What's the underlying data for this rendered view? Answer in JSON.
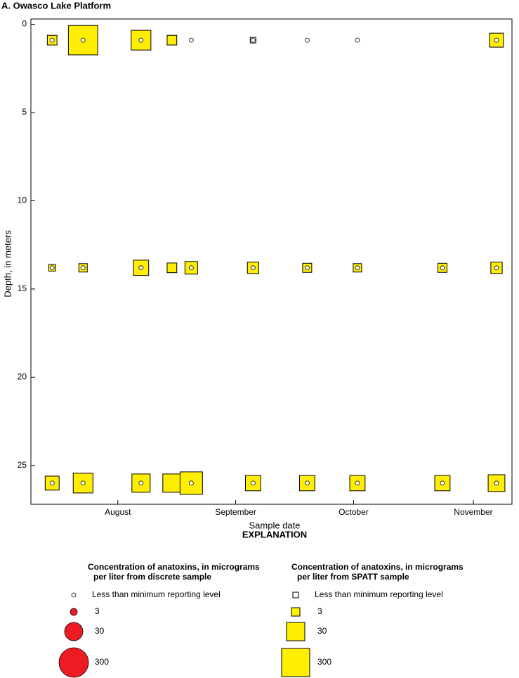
{
  "chart_data": {
    "type": "bubble",
    "title": "A. Owasco Lake Platform",
    "x_label": "Sample date",
    "y_label": "Depth, in meters",
    "xlim": [
      205.5,
      330
    ],
    "xticks": [
      {
        "value": 228,
        "label": "August"
      },
      {
        "value": 258.5,
        "label": "September"
      },
      {
        "value": 289,
        "label": "October"
      },
      {
        "value": 320,
        "label": "November"
      }
    ],
    "ylim": [
      -0.3,
      27.2
    ],
    "yticks": [
      0,
      5,
      10,
      15,
      20,
      25
    ],
    "y_inverted": true,
    "series": [
      {
        "name": "Concentration of anatoxins, in micrograms per liter from SPATT sample",
        "shape": "square",
        "color": "#ffee00",
        "x": [
          211,
          219,
          234,
          242,
          263,
          326,
          211,
          219,
          234,
          242,
          247,
          263,
          277,
          290,
          312,
          326,
          211,
          219,
          234,
          242,
          247,
          263,
          277,
          290,
          312,
          326
        ],
        "y": [
          0.9,
          0.9,
          0.9,
          0.9,
          0.9,
          0.9,
          13.8,
          13.8,
          13.8,
          13.8,
          13.8,
          13.8,
          13.8,
          13.8,
          13.8,
          13.8,
          26,
          26,
          26,
          26,
          26,
          26,
          26,
          26,
          26,
          26
        ],
        "sizes": [
          4,
          400,
          42,
          4,
          null,
          11,
          2,
          3,
          15,
          4,
          8,
          6,
          3.5,
          3,
          3.5,
          6,
          11,
          42,
          30,
          30,
          80,
          15,
          15,
          15,
          15,
          21
        ]
      },
      {
        "name": "Concentration of anatoxins, in micrograms per liter from discrete sample",
        "shape": "circle",
        "color": "#ed1c24",
        "x": [
          211,
          219,
          234,
          247,
          263,
          277,
          290,
          326,
          211,
          219,
          234,
          247,
          263,
          277,
          290,
          312,
          326,
          211,
          219,
          234,
          247,
          263,
          277,
          290,
          312,
          326
        ],
        "y": [
          0.9,
          0.9,
          0.9,
          0.9,
          0.9,
          0.9,
          0.9,
          0.9,
          13.8,
          13.8,
          13.8,
          13.8,
          13.8,
          13.8,
          13.8,
          13.8,
          13.8,
          26,
          26,
          26,
          26,
          26,
          26,
          26,
          26,
          26
        ],
        "sizes": [
          null,
          null,
          null,
          null,
          null,
          null,
          null,
          null,
          null,
          null,
          null,
          null,
          null,
          null,
          null,
          null,
          null,
          null,
          null,
          null,
          null,
          null,
          null,
          null,
          null,
          null
        ]
      }
    ],
    "legend": {
      "title": "EXPLANATION",
      "groups": [
        {
          "shape": "circle",
          "color": "#ed1c24",
          "title_lines": [
            "Concentration of anatoxins, in micrograms",
            "per liter from discrete sample"
          ],
          "below_label": "Less than minimum reporting level",
          "sizes": [
            3,
            30,
            300
          ]
        },
        {
          "shape": "square",
          "color": "#ffee00",
          "title_lines": [
            "Concentration of anatoxins, in micrograms",
            "per liter from SPATT sample"
          ],
          "below_label": "Less than minimum reporting level",
          "sizes": [
            3,
            30,
            300
          ]
        }
      ]
    }
  }
}
